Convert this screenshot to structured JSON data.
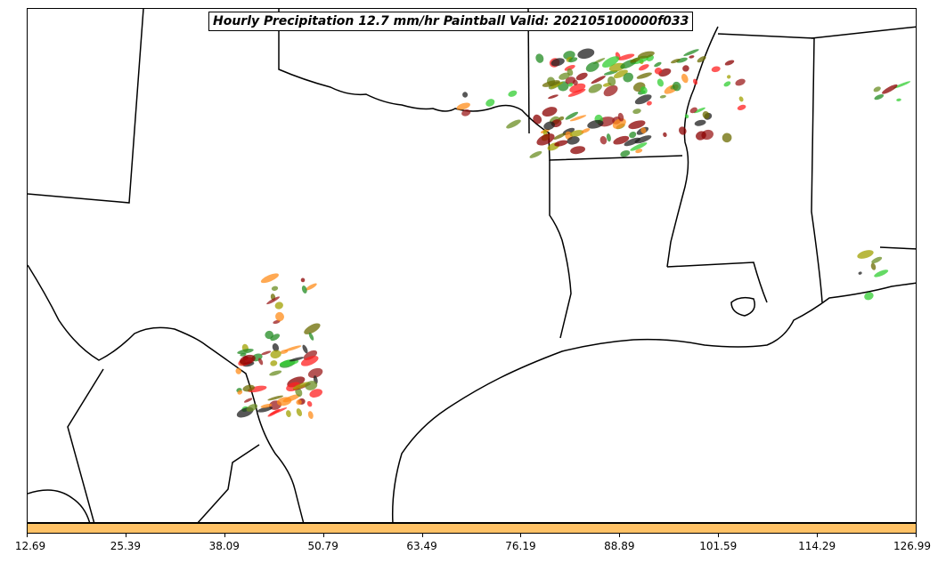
{
  "title": "Hourly Precipitation 12.7 mm/hr Paintball Valid: 202105100000f033",
  "colorbar": {
    "color": "#ffc266",
    "ticks": [
      "12.69",
      "25.39",
      "38.09",
      "50.79",
      "63.49",
      "76.19",
      "88.89",
      "101.59",
      "114.29",
      "126.99"
    ]
  },
  "member_colors": [
    "#8b0000",
    "#228b22",
    "#ff8c1a",
    "#32cd32",
    "#6b6b00",
    "#ff2020",
    "#a0a000",
    "#1f1f1f",
    "#9b1b1b",
    "#6b8e23"
  ]
}
